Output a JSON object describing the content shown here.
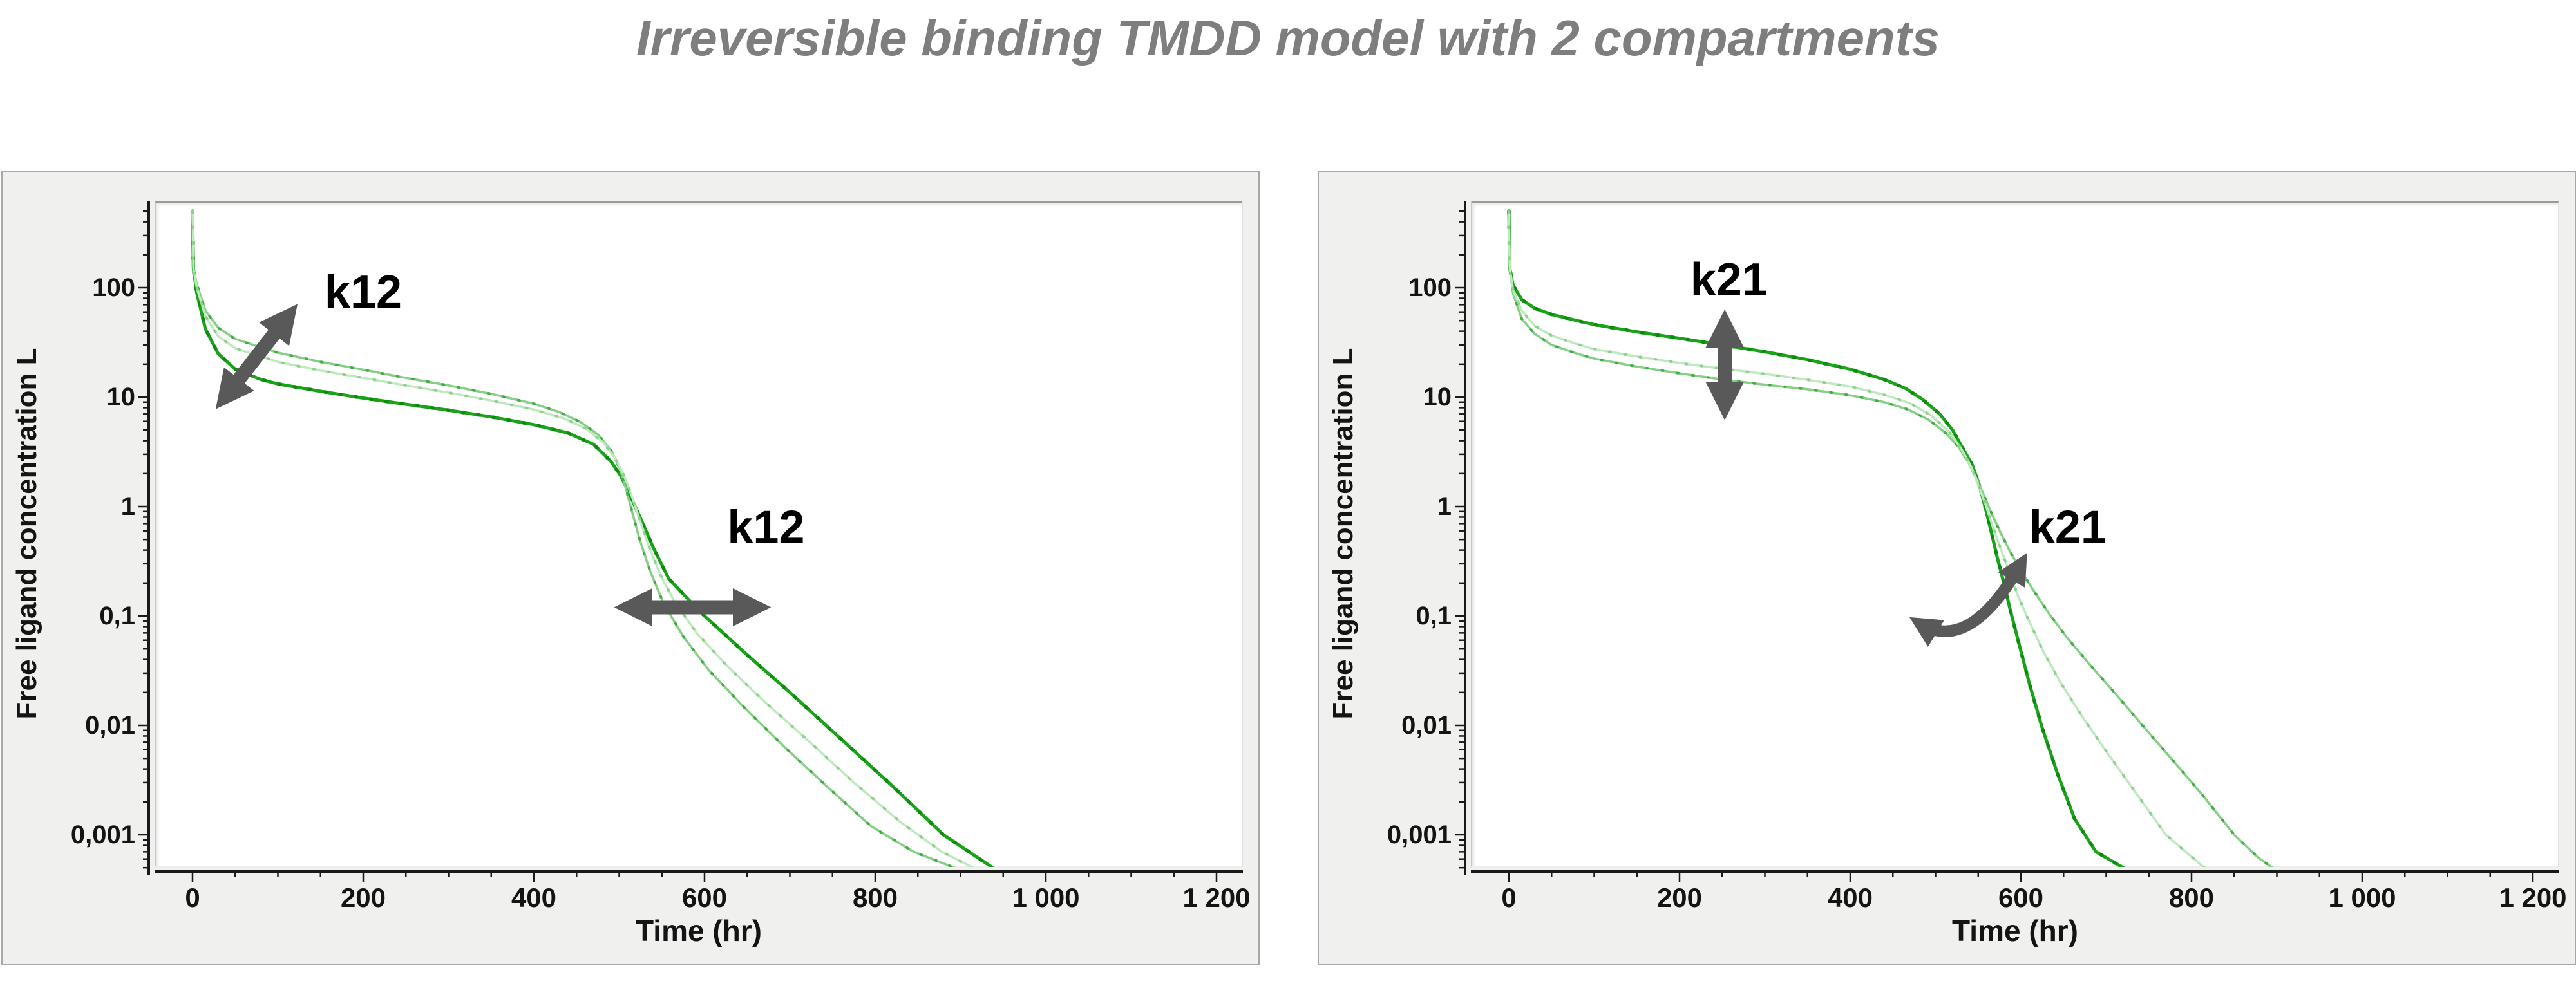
{
  "title": {
    "text": "Irreversible binding TMDD model with 2 compartments",
    "color": "#7e7e7e"
  },
  "chart_data": [
    {
      "type": "line",
      "panel": "left",
      "title": "",
      "xlabel": "Time (hr)",
      "ylabel": "Free ligand concentration L",
      "x_scale": "linear",
      "y_scale": "log",
      "xlim": [
        -45,
        1232
      ],
      "ylim": [
        0.0005,
        620
      ],
      "grid": false,
      "legend": "none",
      "x_ticks": [
        0,
        200,
        400,
        600,
        800,
        1000,
        1200
      ],
      "x_tick_labels": [
        "0",
        "200",
        "400",
        "600",
        "800",
        "1 000",
        "1 200"
      ],
      "y_ticks": [
        100,
        10,
        1,
        0.1,
        0.01,
        0.001
      ],
      "y_tick_labels": [
        "100",
        "10",
        "1",
        "0,1",
        "0,01",
        "0,001"
      ],
      "axis_color": "#1a1a1a",
      "annotation_color": "#595959",
      "series": [
        {
          "name": "dark-green-curve",
          "color": "#18a318",
          "dot_color": "#0e8a0e",
          "width": 5,
          "points": [
            [
              0,
              500
            ],
            [
              1,
              150
            ],
            [
              5,
              90
            ],
            [
              15,
              42
            ],
            [
              30,
              25
            ],
            [
              50,
              18
            ],
            [
              80,
              14.5
            ],
            [
              100,
              13.2
            ],
            [
              150,
              11.3
            ],
            [
              200,
              9.8
            ],
            [
              250,
              8.6
            ],
            [
              300,
              7.6
            ],
            [
              350,
              6.6
            ],
            [
              400,
              5.6
            ],
            [
              440,
              4.7
            ],
            [
              470,
              3.7
            ],
            [
              490,
              2.6
            ],
            [
              502,
              1.9
            ],
            [
              512,
              1.3
            ],
            [
              525,
              0.78
            ],
            [
              540,
              0.42
            ],
            [
              558,
              0.22
            ],
            [
              578,
              0.15
            ],
            [
              600,
              0.1
            ],
            [
              650,
              0.044
            ],
            [
              700,
              0.02
            ],
            [
              760,
              0.0075
            ],
            [
              820,
              0.0028
            ],
            [
              880,
              0.001
            ],
            [
              938,
              0.0005
            ]
          ]
        },
        {
          "name": "light-green-curve",
          "color": "#86cf86",
          "dot_color": "#46ad46",
          "width": 3.6,
          "points": [
            [
              0,
              500
            ],
            [
              1,
              150
            ],
            [
              5,
              108
            ],
            [
              15,
              62
            ],
            [
              30,
              43
            ],
            [
              50,
              34
            ],
            [
              80,
              28.5
            ],
            [
              100,
              25.5
            ],
            [
              150,
              21
            ],
            [
              200,
              17.8
            ],
            [
              250,
              15
            ],
            [
              300,
              12.8
            ],
            [
              350,
              10.7
            ],
            [
              400,
              8.7
            ],
            [
              430,
              7.3
            ],
            [
              455,
              5.9
            ],
            [
              476,
              4.5
            ],
            [
              491,
              3.2
            ],
            [
              501,
              2.2
            ],
            [
              508,
              1.45
            ],
            [
              515,
              0.9
            ],
            [
              524,
              0.5
            ],
            [
              536,
              0.26
            ],
            [
              552,
              0.13
            ],
            [
              575,
              0.065
            ],
            [
              605,
              0.032
            ],
            [
              645,
              0.015
            ],
            [
              695,
              0.0062
            ],
            [
              745,
              0.0027
            ],
            [
              795,
              0.0012
            ],
            [
              845,
              0.0007
            ],
            [
              893,
              0.0005
            ]
          ]
        },
        {
          "name": "pale-green-curve",
          "color": "#bfe9bf",
          "dot_color": "#8ed28e",
          "width": 3.6,
          "points": [
            [
              0,
              500
            ],
            [
              1,
              150
            ],
            [
              5,
              100
            ],
            [
              15,
              55
            ],
            [
              30,
              36
            ],
            [
              50,
              28
            ],
            [
              80,
              23.5
            ],
            [
              100,
              21
            ],
            [
              150,
              17.5
            ],
            [
              200,
              15
            ],
            [
              250,
              12.8
            ],
            [
              300,
              11
            ],
            [
              350,
              9.3
            ],
            [
              400,
              7.7
            ],
            [
              435,
              6.4
            ],
            [
              462,
              5.1
            ],
            [
              482,
              3.8
            ],
            [
              496,
              2.7
            ],
            [
              506,
              1.9
            ],
            [
              514,
              1.3
            ],
            [
              523,
              0.8
            ],
            [
              534,
              0.45
            ],
            [
              548,
              0.24
            ],
            [
              566,
              0.13
            ],
            [
              592,
              0.068
            ],
            [
              628,
              0.034
            ],
            [
              672,
              0.016
            ],
            [
              722,
              0.0072
            ],
            [
              775,
              0.003
            ],
            [
              830,
              0.0013
            ],
            [
              878,
              0.0007
            ],
            [
              915,
              0.0005
            ]
          ]
        }
      ],
      "annotations": [
        {
          "id": "k12-distribution",
          "label": "k12",
          "arrow": "double-diagonal",
          "x1": 38,
          "y1": 10,
          "x2": 112,
          "y2": 55,
          "label_at": [
            200,
            85
          ]
        },
        {
          "id": "k12-terminal",
          "label": "k12",
          "arrow": "double-horizontal",
          "x1": 512,
          "y1": 0.12,
          "x2": 660,
          "y2": 0.12,
          "label_at": [
            672,
            0.6
          ]
        }
      ]
    },
    {
      "type": "line",
      "panel": "right",
      "title": "",
      "xlabel": "Time (hr)",
      "ylabel": "Free ligand concentration L",
      "x_scale": "linear",
      "y_scale": "log",
      "xlim": [
        -45,
        1232
      ],
      "ylim": [
        0.0005,
        620
      ],
      "grid": false,
      "legend": "none",
      "x_ticks": [
        0,
        200,
        400,
        600,
        800,
        1000,
        1200
      ],
      "x_tick_labels": [
        "0",
        "200",
        "400",
        "600",
        "800",
        "1 000",
        "1 200"
      ],
      "y_ticks": [
        100,
        10,
        1,
        0.1,
        0.01,
        0.001
      ],
      "y_tick_labels": [
        "100",
        "10",
        "1",
        "0,1",
        "0,01",
        "0,001"
      ],
      "axis_color": "#1a1a1a",
      "annotation_color": "#595959",
      "series": [
        {
          "name": "dark-green-curve",
          "color": "#18a318",
          "dot_color": "#0e8a0e",
          "width": 5,
          "points": [
            [
              0,
              500
            ],
            [
              1,
              150
            ],
            [
              5,
              105
            ],
            [
              15,
              78
            ],
            [
              30,
              65
            ],
            [
              50,
              57
            ],
            [
              80,
              50
            ],
            [
              100,
              46
            ],
            [
              150,
              39.5
            ],
            [
              200,
              34.5
            ],
            [
              250,
              30
            ],
            [
              300,
              26
            ],
            [
              350,
              22
            ],
            [
              400,
              18
            ],
            [
              440,
              14.5
            ],
            [
              465,
              12
            ],
            [
              485,
              9.5
            ],
            [
              505,
              7
            ],
            [
              520,
              5
            ],
            [
              532,
              3.4
            ],
            [
              543,
              2.4
            ],
            [
              551,
              1.6
            ],
            [
              558,
              1.0
            ],
            [
              565,
              0.6
            ],
            [
              572,
              0.35
            ],
            [
              580,
              0.2
            ],
            [
              588,
              0.11
            ],
            [
              598,
              0.055
            ],
            [
              610,
              0.024
            ],
            [
              625,
              0.0095
            ],
            [
              643,
              0.0036
            ],
            [
              663,
              0.0014
            ],
            [
              688,
              0.0007
            ],
            [
              720,
              0.0005
            ]
          ]
        },
        {
          "name": "light-green-curve",
          "color": "#86cf86",
          "dot_color": "#46ad46",
          "width": 3.6,
          "points": [
            [
              0,
              500
            ],
            [
              1,
              150
            ],
            [
              5,
              88
            ],
            [
              15,
              52
            ],
            [
              30,
              38
            ],
            [
              50,
              30
            ],
            [
              80,
              25
            ],
            [
              100,
              22.5
            ],
            [
              150,
              19
            ],
            [
              200,
              16.5
            ],
            [
              250,
              14.5
            ],
            [
              300,
              13
            ],
            [
              350,
              11.8
            ],
            [
              400,
              10.4
            ],
            [
              440,
              9.0
            ],
            [
              468,
              7.7
            ],
            [
              492,
              6.2
            ],
            [
              512,
              4.7
            ],
            [
              527,
              3.5
            ],
            [
              539,
              2.5
            ],
            [
              549,
              1.75
            ],
            [
              558,
              1.2
            ],
            [
              567,
              0.82
            ],
            [
              577,
              0.56
            ],
            [
              588,
              0.38
            ],
            [
              600,
              0.26
            ],
            [
              615,
              0.17
            ],
            [
              633,
              0.105
            ],
            [
              655,
              0.062
            ],
            [
              682,
              0.035
            ],
            [
              712,
              0.019
            ],
            [
              745,
              0.0095
            ],
            [
              780,
              0.0046
            ],
            [
              815,
              0.0022
            ],
            [
              850,
              0.001
            ],
            [
              878,
              0.00062
            ],
            [
              895,
              0.0005
            ]
          ]
        },
        {
          "name": "pale-green-curve",
          "color": "#bfe9bf",
          "dot_color": "#8ed28e",
          "width": 3.6,
          "points": [
            [
              0,
              500
            ],
            [
              1,
              150
            ],
            [
              5,
              95
            ],
            [
              15,
              62
            ],
            [
              30,
              45
            ],
            [
              50,
              36.5
            ],
            [
              80,
              30.5
            ],
            [
              100,
              27.5
            ],
            [
              150,
              23.5
            ],
            [
              200,
              20.5
            ],
            [
              250,
              18.2
            ],
            [
              300,
              16.3
            ],
            [
              350,
              14.4
            ],
            [
              400,
              12.5
            ],
            [
              440,
              10.5
            ],
            [
              470,
              8.8
            ],
            [
              495,
              6.8
            ],
            [
              515,
              4.9
            ],
            [
              530,
              3.4
            ],
            [
              542,
              2.3
            ],
            [
              551,
              1.5
            ],
            [
              559,
              1.02
            ],
            [
              567,
              0.66
            ],
            [
              576,
              0.42
            ],
            [
              586,
              0.26
            ],
            [
              597,
              0.15
            ],
            [
              610,
              0.088
            ],
            [
              626,
              0.048
            ],
            [
              646,
              0.025
            ],
            [
              672,
              0.012
            ],
            [
              702,
              0.0055
            ],
            [
              735,
              0.0024
            ],
            [
              770,
              0.001
            ],
            [
              815,
              0.0005
            ]
          ]
        }
      ],
      "annotations": [
        {
          "id": "k21-distribution",
          "label": "k21",
          "arrow": "double-vertical",
          "x1": 253,
          "y1": 46,
          "x2": 253,
          "y2": 8.5,
          "label_at": [
            258,
            110
          ]
        },
        {
          "id": "k21-terminal",
          "label": "k21",
          "arrow": "double-curved",
          "x1": 482,
          "y1": 0.085,
          "x2": 600,
          "y2": 0.3,
          "ctrl": [
            540,
            0.045
          ],
          "label_at": [
            655,
            0.6
          ]
        }
      ]
    }
  ]
}
